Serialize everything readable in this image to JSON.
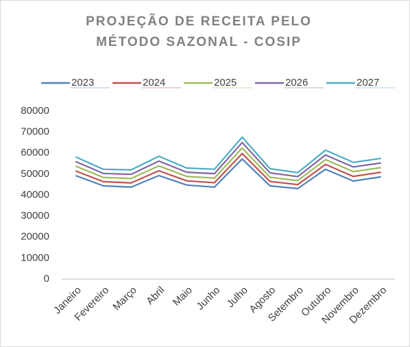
{
  "chart_data": {
    "type": "line",
    "title": [
      "PROJEÇÃO  DE RECEITA PELO",
      "MÉTODO SAZONAL  - COSIP"
    ],
    "categories": [
      "Janeiro",
      "Fevereiro",
      "Março",
      "Abril",
      "Maio",
      "Junho",
      "Julho",
      "Agosto",
      "Setembro",
      "Outubro",
      "Novembro",
      "Dezembro"
    ],
    "series": [
      {
        "name": "2023",
        "color": "#4f81bd",
        "values": [
          49300,
          44400,
          43800,
          49300,
          44800,
          43800,
          57200,
          44400,
          43100,
          52300,
          46700,
          48700
        ]
      },
      {
        "name": "2024",
        "color": "#c0504d",
        "values": [
          51500,
          46400,
          45800,
          51600,
          46800,
          45900,
          59800,
          46500,
          45000,
          54600,
          48900,
          50900
        ]
      },
      {
        "name": "2025",
        "color": "#9bbb59",
        "values": [
          53800,
          48400,
          47900,
          53900,
          48900,
          48100,
          62400,
          48500,
          46900,
          56900,
          51200,
          53100
        ]
      },
      {
        "name": "2026",
        "color": "#8064a2",
        "values": [
          56000,
          50300,
          49900,
          56200,
          50900,
          50200,
          65000,
          50600,
          48800,
          59100,
          53400,
          55300
        ]
      },
      {
        "name": "2027",
        "color": "#4bacc6",
        "values": [
          58200,
          52300,
          52000,
          58500,
          52900,
          52300,
          67600,
          52600,
          50700,
          61400,
          55600,
          57500
        ]
      }
    ],
    "ylim": [
      0,
      80000
    ],
    "yticks": [
      0,
      10000,
      20000,
      30000,
      40000,
      50000,
      60000,
      70000,
      80000
    ],
    "grid": false,
    "legend": "top"
  }
}
